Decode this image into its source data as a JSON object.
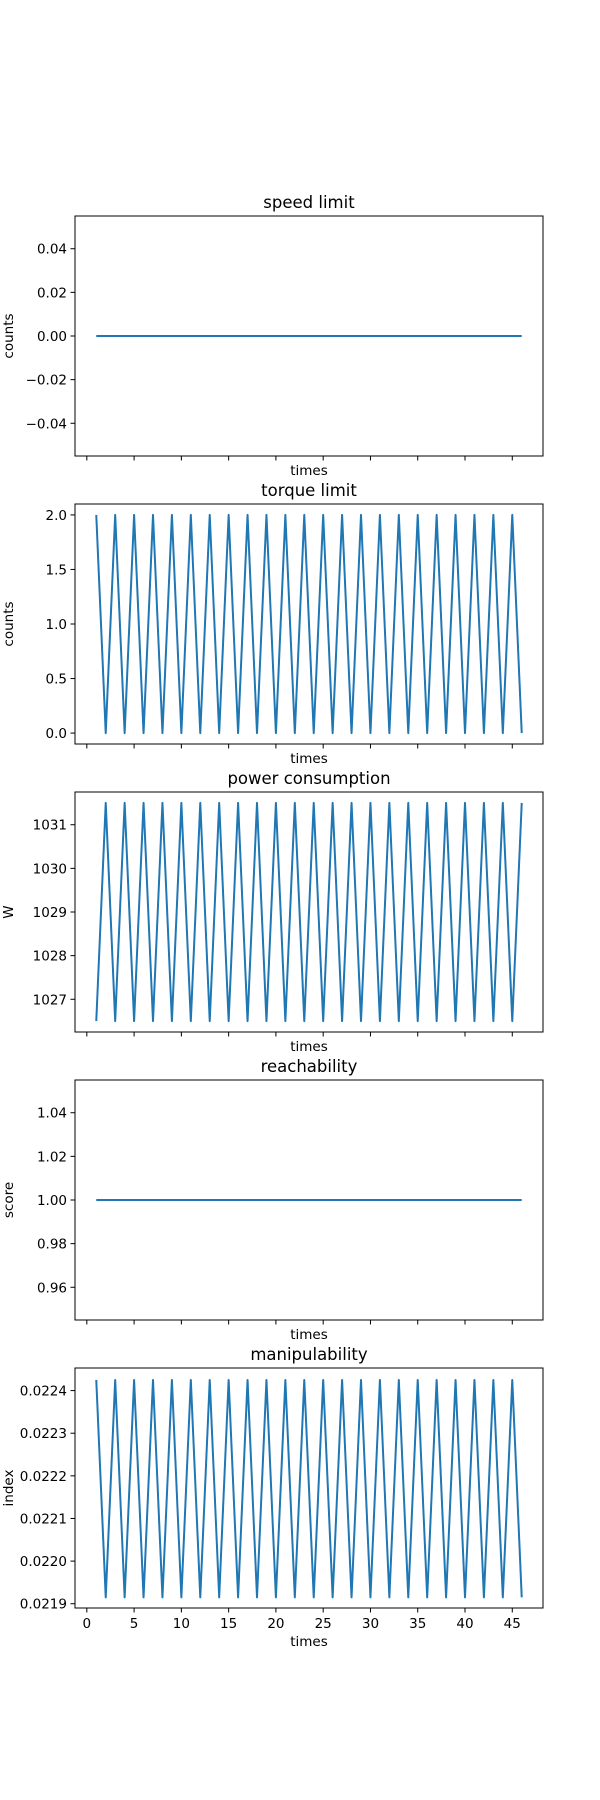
{
  "figure": {
    "background": "#ffffff",
    "line_color": "#1f77b4"
  },
  "chart_data": [
    {
      "type": "line",
      "title": "speed limit",
      "xlabel": "times",
      "ylabel": "counts",
      "x_range": [
        1,
        46
      ],
      "xlim": [
        -1.25,
        48.25
      ],
      "ylim": [
        -0.055,
        0.055
      ],
      "yticks": [
        "0.04",
        "0.02",
        "0.00",
        "−0.02",
        "−0.04"
      ],
      "ytick_values": [
        0.04,
        0.02,
        0.0,
        -0.02,
        -0.04
      ],
      "pattern": "constant",
      "values": [
        0.0
      ],
      "show_xtick_labels": false
    },
    {
      "type": "line",
      "title": "torque limit",
      "xlabel": "times",
      "ylabel": "counts",
      "x_range": [
        1,
        46
      ],
      "xlim": [
        -1.25,
        48.25
      ],
      "ylim": [
        -0.1,
        2.1
      ],
      "yticks": [
        "2.0",
        "1.5",
        "1.0",
        "0.5",
        "0.0"
      ],
      "ytick_values": [
        2.0,
        1.5,
        1.0,
        0.5,
        0.0
      ],
      "pattern": "alternating",
      "values": [
        2.0,
        0.0
      ],
      "show_xtick_labels": false
    },
    {
      "type": "line",
      "title": "power consumption",
      "xlabel": "times",
      "ylabel": "W",
      "x_range": [
        1,
        46
      ],
      "xlim": [
        -1.25,
        48.25
      ],
      "ylim": [
        1026.25,
        1031.75
      ],
      "yticks": [
        "1031",
        "1030",
        "1029",
        "1028",
        "1027"
      ],
      "ytick_values": [
        1031,
        1030,
        1029,
        1028,
        1027
      ],
      "pattern": "alternating",
      "values": [
        1026.5,
        1031.5
      ],
      "show_xtick_labels": false
    },
    {
      "type": "line",
      "title": "reachability",
      "xlabel": "times",
      "ylabel": "score",
      "x_range": [
        1,
        46
      ],
      "xlim": [
        -1.25,
        48.25
      ],
      "ylim": [
        0.945,
        1.055
      ],
      "yticks": [
        "1.04",
        "1.02",
        "1.00",
        "0.98",
        "0.96"
      ],
      "ytick_values": [
        1.04,
        1.02,
        1.0,
        0.98,
        0.96
      ],
      "pattern": "constant",
      "values": [
        1.0
      ],
      "show_xtick_labels": false
    },
    {
      "type": "line",
      "title": "manipulability",
      "xlabel": "times",
      "ylabel": "index",
      "x_range": [
        1,
        46
      ],
      "xlim": [
        -1.25,
        48.25
      ],
      "ylim": [
        0.02189,
        0.022453
      ],
      "yticks": [
        "0.0224",
        "0.0223",
        "0.0222",
        "0.0221",
        "0.0220",
        "0.0219"
      ],
      "ytick_values": [
        0.0224,
        0.0223,
        0.0222,
        0.0221,
        0.022,
        0.0219
      ],
      "pattern": "alternating",
      "values": [
        0.022425,
        0.021915
      ],
      "show_xtick_labels": true
    }
  ],
  "xticks": [
    "0",
    "5",
    "10",
    "15",
    "20",
    "25",
    "30",
    "35",
    "40",
    "45"
  ],
  "xtick_values": [
    0,
    5,
    10,
    15,
    20,
    25,
    30,
    35,
    40,
    45
  ]
}
